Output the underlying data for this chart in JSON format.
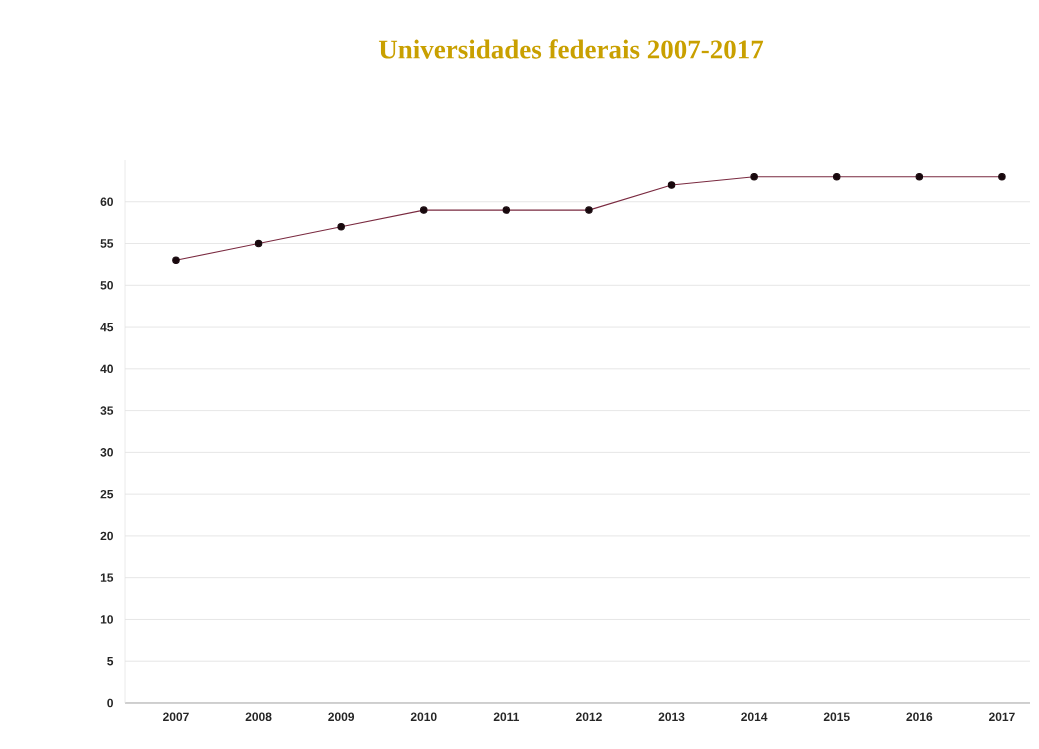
{
  "chart_data": {
    "type": "line",
    "title": "Universidades federais 2007-2017",
    "categories": [
      "2007",
      "2008",
      "2009",
      "2010",
      "2011",
      "2012",
      "2013",
      "2014",
      "2015",
      "2016",
      "2017"
    ],
    "series": [
      {
        "color": "#7a2a40",
        "values": [
          53,
          55,
          57,
          59,
          59,
          59,
          62,
          63,
          63,
          63,
          63
        ]
      }
    ],
    "ylim": [
      0,
      65
    ],
    "yticks": [
      0,
      5,
      10,
      15,
      20,
      25,
      30,
      35,
      40,
      45,
      50,
      55,
      60
    ],
    "grid": "y",
    "marker": "circle",
    "line_style": "solid"
  }
}
